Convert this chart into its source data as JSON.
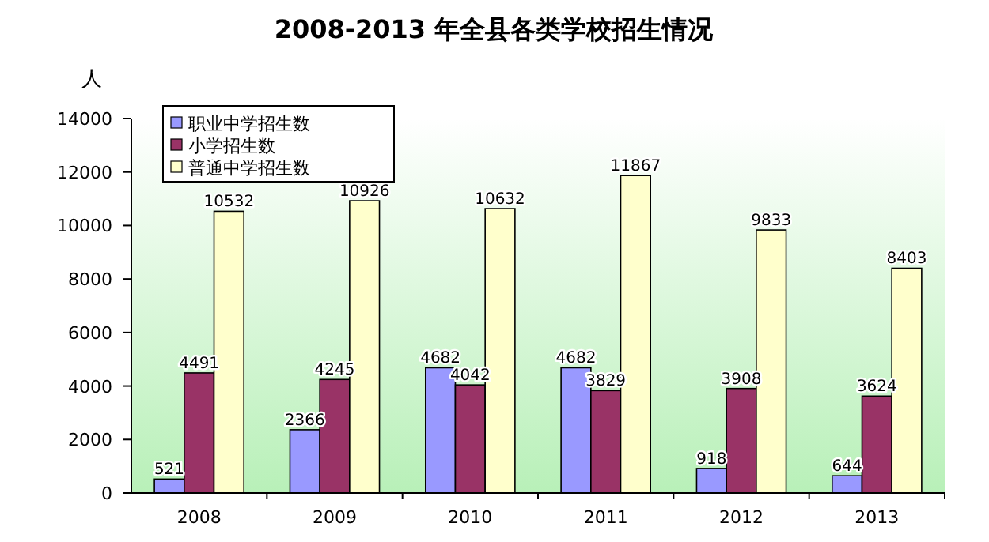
{
  "chart_data": {
    "type": "bar",
    "title": "2008-2013 年全县各类学校招生情况",
    "ylabel": "人",
    "categories": [
      "2008",
      "2009",
      "2010",
      "2011",
      "2012",
      "2013"
    ],
    "series": [
      {
        "name": "职业中学招生数",
        "color": "#9999ff",
        "values": [
          521,
          2366,
          4682,
          4682,
          918,
          644
        ]
      },
      {
        "name": "小学招生数",
        "color": "#993366",
        "values": [
          4491,
          4245,
          4042,
          3829,
          3908,
          3624
        ]
      },
      {
        "name": "普通中学招生数",
        "color": "#ffffcc",
        "values": [
          10532,
          10926,
          10632,
          11867,
          9833,
          8403
        ]
      }
    ],
    "ylim": [
      0,
      14000
    ],
    "yticks": [
      0,
      2000,
      4000,
      6000,
      8000,
      10000,
      12000,
      14000
    ],
    "grid": false,
    "legend": "top left",
    "data_labels": true
  }
}
